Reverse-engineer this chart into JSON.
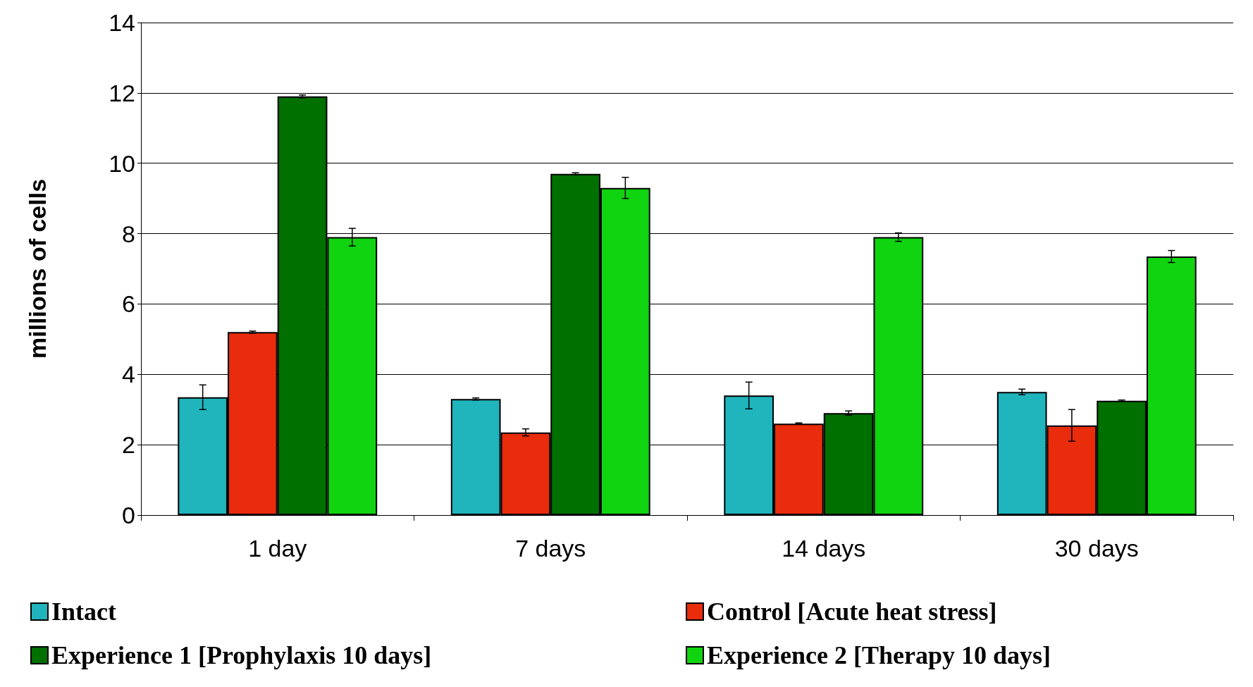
{
  "chart_data": {
    "type": "bar",
    "ylabel": "millions of cells",
    "categories": [
      "1 day",
      "7 days",
      "14 days",
      "30 days"
    ],
    "series": [
      {
        "name": "Intact",
        "color": "#20b4bc",
        "values": [
          3.35,
          3.3,
          3.4,
          3.5
        ],
        "errors": [
          0.35,
          0.03,
          0.38,
          0.08
        ]
      },
      {
        "name": "Control [Acute heat stress]",
        "color": "#e82c0c",
        "values": [
          5.2,
          2.35,
          2.6,
          2.55
        ],
        "errors": [
          0.03,
          0.1,
          0.02,
          0.45
        ]
      },
      {
        "name": "Experience 1 [Prophylaxis 10 days]",
        "color": "#007000",
        "values": [
          11.9,
          9.7,
          2.9,
          3.25
        ],
        "errors": [
          0.04,
          0.03,
          0.06,
          0.02
        ]
      },
      {
        "name": "Experience 2 [Therapy 10 days]",
        "color": "#10d410",
        "values": [
          7.9,
          9.3,
          7.9,
          7.35
        ],
        "errors": [
          0.25,
          0.3,
          0.12,
          0.17
        ]
      }
    ],
    "ylim": [
      0,
      14
    ],
    "yticks": [
      0,
      2,
      4,
      6,
      8,
      10,
      12,
      14
    ],
    "grid": "y",
    "legend": "bottom"
  }
}
